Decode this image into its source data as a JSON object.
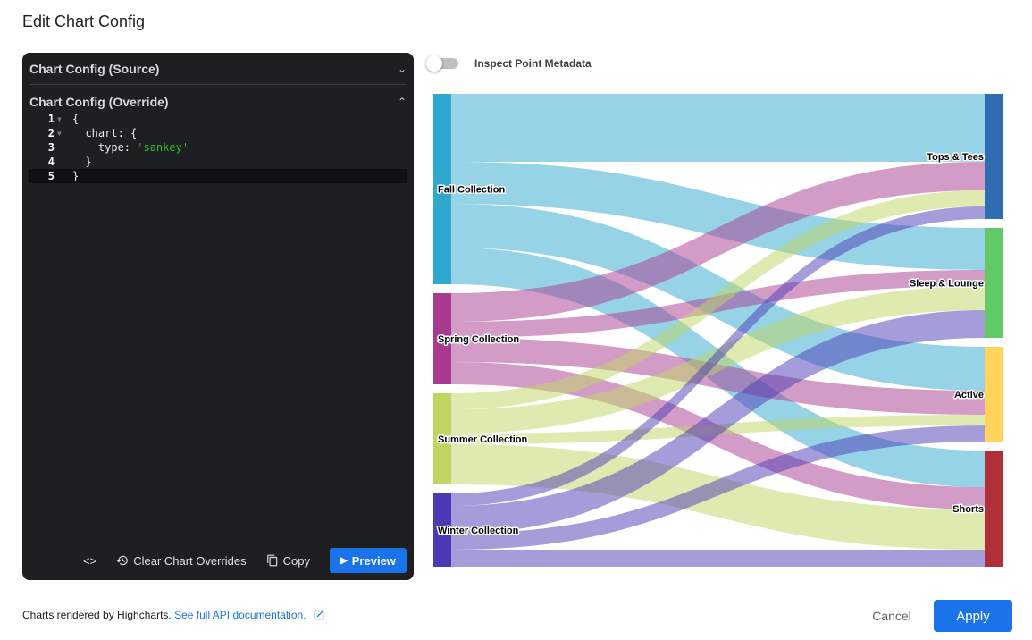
{
  "dialog": {
    "title": "Edit Chart Config"
  },
  "editor": {
    "source_label": "Chart Config (Source)",
    "override_label": "Chart Config (Override)",
    "lines": [
      {
        "n": "1",
        "text": "{"
      },
      {
        "n": "2",
        "text": "  chart: {"
      },
      {
        "n": "3",
        "text": "    type: ",
        "str": "'sankey'"
      },
      {
        "n": "4",
        "text": "  }"
      },
      {
        "n": "5",
        "text": "}"
      }
    ],
    "toolbar": {
      "code_icon": "<>",
      "clear_label": "Clear Chart Overrides",
      "copy_label": "Copy",
      "preview_label": "Preview"
    }
  },
  "inspect": {
    "label": "Inspect Point Metadata",
    "enabled": false
  },
  "chart_data": {
    "type": "sankey",
    "nodes": [
      {
        "id": "Fall Collection",
        "color": "#2ea8cf",
        "column": 0
      },
      {
        "id": "Spring Collection",
        "color": "#a83a8f",
        "column": 0
      },
      {
        "id": "Summer Collection",
        "color": "#c0d662",
        "column": 0
      },
      {
        "id": "Winter Collection",
        "color": "#4b3ab6",
        "column": 0
      },
      {
        "id": "Tops & Tees",
        "color": "#2f6db3",
        "column": 1
      },
      {
        "id": "Sleep & Lounge",
        "color": "#63c964",
        "column": 1
      },
      {
        "id": "Active",
        "color": "#ffd35c",
        "column": 1
      },
      {
        "id": "Shorts",
        "color": "#b0303a",
        "column": 1
      }
    ],
    "links": [
      {
        "from": "Fall Collection",
        "to": "Tops & Tees",
        "weight": 76
      },
      {
        "from": "Fall Collection",
        "to": "Sleep & Lounge",
        "weight": 47
      },
      {
        "from": "Fall Collection",
        "to": "Active",
        "weight": 49
      },
      {
        "from": "Fall Collection",
        "to": "Shorts",
        "weight": 41
      },
      {
        "from": "Spring Collection",
        "to": "Tops & Tees",
        "weight": 32
      },
      {
        "from": "Spring Collection",
        "to": "Sleep & Lounge",
        "weight": 18
      },
      {
        "from": "Spring Collection",
        "to": "Active",
        "weight": 27
      },
      {
        "from": "Spring Collection",
        "to": "Shorts",
        "weight": 25
      },
      {
        "from": "Summer Collection",
        "to": "Tops & Tees",
        "weight": 18
      },
      {
        "from": "Summer Collection",
        "to": "Sleep & Lounge",
        "weight": 27
      },
      {
        "from": "Summer Collection",
        "to": "Active",
        "weight": 12
      },
      {
        "from": "Summer Collection",
        "to": "Shorts",
        "weight": 45
      },
      {
        "from": "Winter Collection",
        "to": "Tops & Tees",
        "weight": 14
      },
      {
        "from": "Winter Collection",
        "to": "Sleep & Lounge",
        "weight": 31
      },
      {
        "from": "Winter Collection",
        "to": "Active",
        "weight": 18
      },
      {
        "from": "Winter Collection",
        "to": "Shorts",
        "weight": 19
      }
    ]
  },
  "footer": {
    "text": "Charts rendered by Highcharts.",
    "link": "See full API documentation.",
    "cancel": "Cancel",
    "apply": "Apply"
  }
}
